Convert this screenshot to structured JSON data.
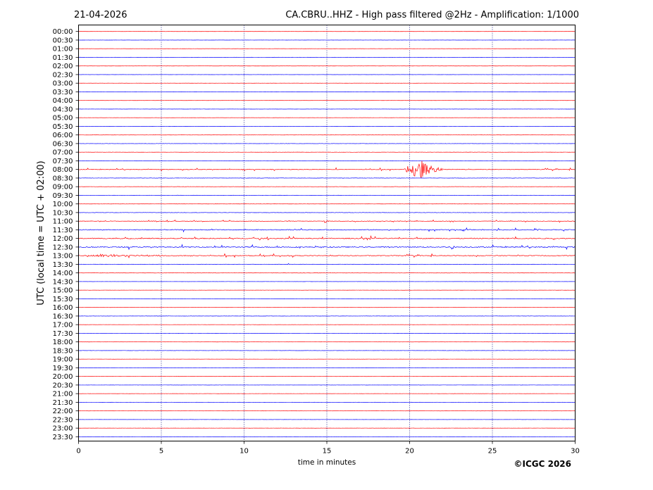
{
  "header": {
    "date": "21-04-2026",
    "title": "CA.CBRU..HHZ - High pass filtered @2Hz - Amplification: 1/1000"
  },
  "footer": {
    "copyright": "©ICGC 2026"
  },
  "chart_data": {
    "type": "line",
    "subtype": "helicorder",
    "xlabel": "time in minutes",
    "ylabel": "UTC (local time = UTC + 02:00)",
    "xlim": [
      0,
      30
    ],
    "x_ticks": [
      "0",
      "5",
      "10",
      "15",
      "20",
      "25",
      "30"
    ],
    "vertical_grid_minutes": [
      5,
      10,
      15,
      20,
      25
    ],
    "grid_style": "dotted",
    "row_labels": [
      "00:00",
      "00:30",
      "01:00",
      "01:30",
      "02:00",
      "02:30",
      "03:00",
      "03:30",
      "04:00",
      "04:30",
      "05:00",
      "05:30",
      "06:00",
      "06:30",
      "07:00",
      "07:30",
      "08:00",
      "08:30",
      "09:00",
      "09:30",
      "10:00",
      "10:30",
      "11:00",
      "11:30",
      "12:00",
      "12:30",
      "13:00",
      "13:30",
      "14:00",
      "14:30",
      "15:00",
      "15:30",
      "16:00",
      "16:30",
      "17:00",
      "17:30",
      "18:00",
      "18:30",
      "19:00",
      "19:30",
      "20:00",
      "20:30",
      "21:00",
      "21:30",
      "22:00",
      "22:30",
      "23:00",
      "23:30"
    ],
    "trace_colors": [
      "#ff0000",
      "#0000ff"
    ],
    "noise_level": [
      0.2,
      0.2,
      0.2,
      0.3,
      0.2,
      0.2,
      0.2,
      0.2,
      0.2,
      0.2,
      0.2,
      0.2,
      0.3,
      0.3,
      0.3,
      0.3,
      0.8,
      0.4,
      0.3,
      0.3,
      0.3,
      0.4,
      0.6,
      1.0,
      1.2,
      1.3,
      1.0,
      0.4,
      0.4,
      0.2,
      0.2,
      0.2,
      0.2,
      0.3,
      0.2,
      0.2,
      0.2,
      0.3,
      0.2,
      0.2,
      0.2,
      0.2,
      0.2,
      0.2,
      0.2,
      0.2,
      0.2,
      0.2
    ],
    "events": [
      {
        "row": "08:00",
        "start_min": 19.7,
        "end_min": 22.0,
        "peak_min": 20.7,
        "peak_amplitude": 2.2
      },
      {
        "row": "11:00",
        "start_min": 14.8,
        "end_min": 15.2,
        "peak_min": 14.9,
        "peak_amplitude": 0.4
      },
      {
        "row": "12:30",
        "start_min": 22.5,
        "end_min": 22.7,
        "peak_min": 22.6,
        "peak_amplitude": 1.3
      },
      {
        "row": "13:00",
        "start_min": 0.2,
        "end_min": 8.0,
        "peak_min": 2.0,
        "peak_amplitude": 0.3
      },
      {
        "row": "13:30",
        "start_min": 12.6,
        "end_min": 12.8,
        "peak_min": 12.7,
        "peak_amplitude": 0.25
      }
    ]
  }
}
